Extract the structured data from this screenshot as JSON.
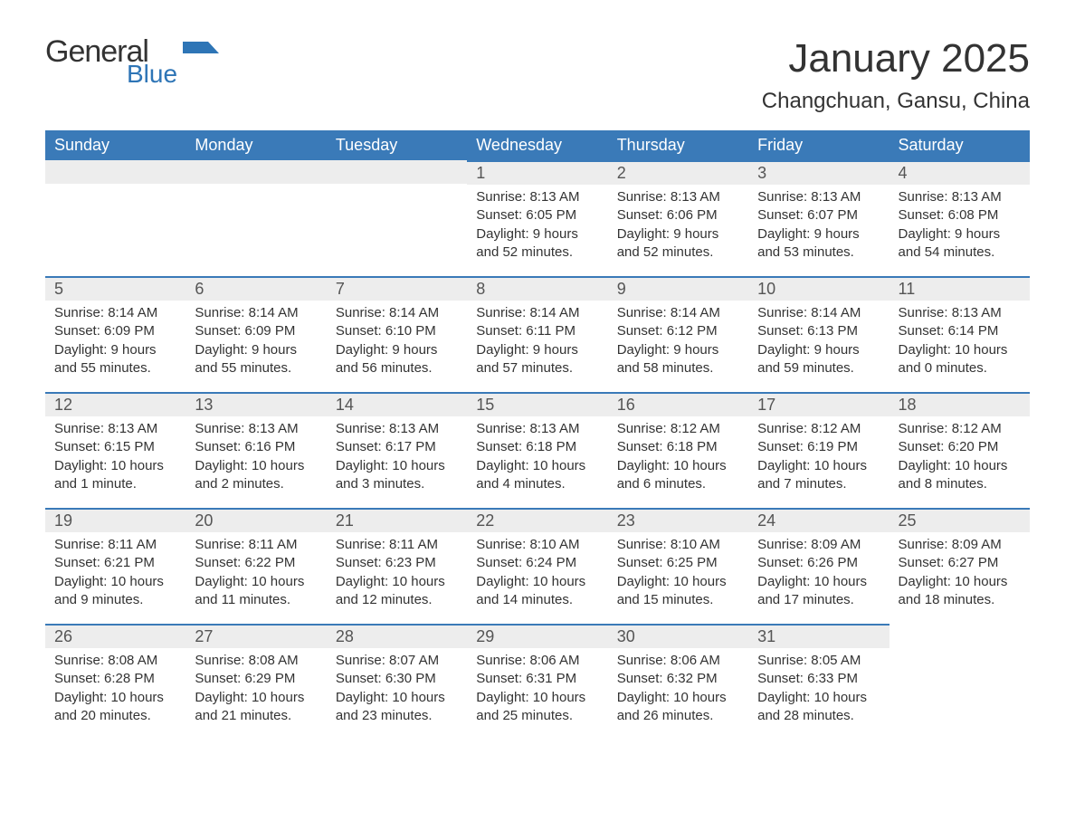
{
  "logo": {
    "line1": "General",
    "line2": "Blue",
    "icon_color": "#2e75b6"
  },
  "header": {
    "month_title": "January 2025",
    "location": "Changchuan, Gansu, China"
  },
  "calendar": {
    "header_bg": "#3a7ab8",
    "header_fg": "#ffffff",
    "row_accent": "#3a7ab8",
    "daynum_bg": "#ededed",
    "text_color": "#333333",
    "columns": [
      "Sunday",
      "Monday",
      "Tuesday",
      "Wednesday",
      "Thursday",
      "Friday",
      "Saturday"
    ],
    "weeks": [
      [
        null,
        null,
        null,
        {
          "n": "1",
          "sunrise": "8:13 AM",
          "sunset": "6:05 PM",
          "daylight": "9 hours and 52 minutes."
        },
        {
          "n": "2",
          "sunrise": "8:13 AM",
          "sunset": "6:06 PM",
          "daylight": "9 hours and 52 minutes."
        },
        {
          "n": "3",
          "sunrise": "8:13 AM",
          "sunset": "6:07 PM",
          "daylight": "9 hours and 53 minutes."
        },
        {
          "n": "4",
          "sunrise": "8:13 AM",
          "sunset": "6:08 PM",
          "daylight": "9 hours and 54 minutes."
        }
      ],
      [
        {
          "n": "5",
          "sunrise": "8:14 AM",
          "sunset": "6:09 PM",
          "daylight": "9 hours and 55 minutes."
        },
        {
          "n": "6",
          "sunrise": "8:14 AM",
          "sunset": "6:09 PM",
          "daylight": "9 hours and 55 minutes."
        },
        {
          "n": "7",
          "sunrise": "8:14 AM",
          "sunset": "6:10 PM",
          "daylight": "9 hours and 56 minutes."
        },
        {
          "n": "8",
          "sunrise": "8:14 AM",
          "sunset": "6:11 PM",
          "daylight": "9 hours and 57 minutes."
        },
        {
          "n": "9",
          "sunrise": "8:14 AM",
          "sunset": "6:12 PM",
          "daylight": "9 hours and 58 minutes."
        },
        {
          "n": "10",
          "sunrise": "8:14 AM",
          "sunset": "6:13 PM",
          "daylight": "9 hours and 59 minutes."
        },
        {
          "n": "11",
          "sunrise": "8:13 AM",
          "sunset": "6:14 PM",
          "daylight": "10 hours and 0 minutes."
        }
      ],
      [
        {
          "n": "12",
          "sunrise": "8:13 AM",
          "sunset": "6:15 PM",
          "daylight": "10 hours and 1 minute."
        },
        {
          "n": "13",
          "sunrise": "8:13 AM",
          "sunset": "6:16 PM",
          "daylight": "10 hours and 2 minutes."
        },
        {
          "n": "14",
          "sunrise": "8:13 AM",
          "sunset": "6:17 PM",
          "daylight": "10 hours and 3 minutes."
        },
        {
          "n": "15",
          "sunrise": "8:13 AM",
          "sunset": "6:18 PM",
          "daylight": "10 hours and 4 minutes."
        },
        {
          "n": "16",
          "sunrise": "8:12 AM",
          "sunset": "6:18 PM",
          "daylight": "10 hours and 6 minutes."
        },
        {
          "n": "17",
          "sunrise": "8:12 AM",
          "sunset": "6:19 PM",
          "daylight": "10 hours and 7 minutes."
        },
        {
          "n": "18",
          "sunrise": "8:12 AM",
          "sunset": "6:20 PM",
          "daylight": "10 hours and 8 minutes."
        }
      ],
      [
        {
          "n": "19",
          "sunrise": "8:11 AM",
          "sunset": "6:21 PM",
          "daylight": "10 hours and 9 minutes."
        },
        {
          "n": "20",
          "sunrise": "8:11 AM",
          "sunset": "6:22 PM",
          "daylight": "10 hours and 11 minutes."
        },
        {
          "n": "21",
          "sunrise": "8:11 AM",
          "sunset": "6:23 PM",
          "daylight": "10 hours and 12 minutes."
        },
        {
          "n": "22",
          "sunrise": "8:10 AM",
          "sunset": "6:24 PM",
          "daylight": "10 hours and 14 minutes."
        },
        {
          "n": "23",
          "sunrise": "8:10 AM",
          "sunset": "6:25 PM",
          "daylight": "10 hours and 15 minutes."
        },
        {
          "n": "24",
          "sunrise": "8:09 AM",
          "sunset": "6:26 PM",
          "daylight": "10 hours and 17 minutes."
        },
        {
          "n": "25",
          "sunrise": "8:09 AM",
          "sunset": "6:27 PM",
          "daylight": "10 hours and 18 minutes."
        }
      ],
      [
        {
          "n": "26",
          "sunrise": "8:08 AM",
          "sunset": "6:28 PM",
          "daylight": "10 hours and 20 minutes."
        },
        {
          "n": "27",
          "sunrise": "8:08 AM",
          "sunset": "6:29 PM",
          "daylight": "10 hours and 21 minutes."
        },
        {
          "n": "28",
          "sunrise": "8:07 AM",
          "sunset": "6:30 PM",
          "daylight": "10 hours and 23 minutes."
        },
        {
          "n": "29",
          "sunrise": "8:06 AM",
          "sunset": "6:31 PM",
          "daylight": "10 hours and 25 minutes."
        },
        {
          "n": "30",
          "sunrise": "8:06 AM",
          "sunset": "6:32 PM",
          "daylight": "10 hours and 26 minutes."
        },
        {
          "n": "31",
          "sunrise": "8:05 AM",
          "sunset": "6:33 PM",
          "daylight": "10 hours and 28 minutes."
        },
        null
      ]
    ],
    "labels": {
      "sunrise": "Sunrise: ",
      "sunset": "Sunset: ",
      "daylight": "Daylight: "
    }
  }
}
